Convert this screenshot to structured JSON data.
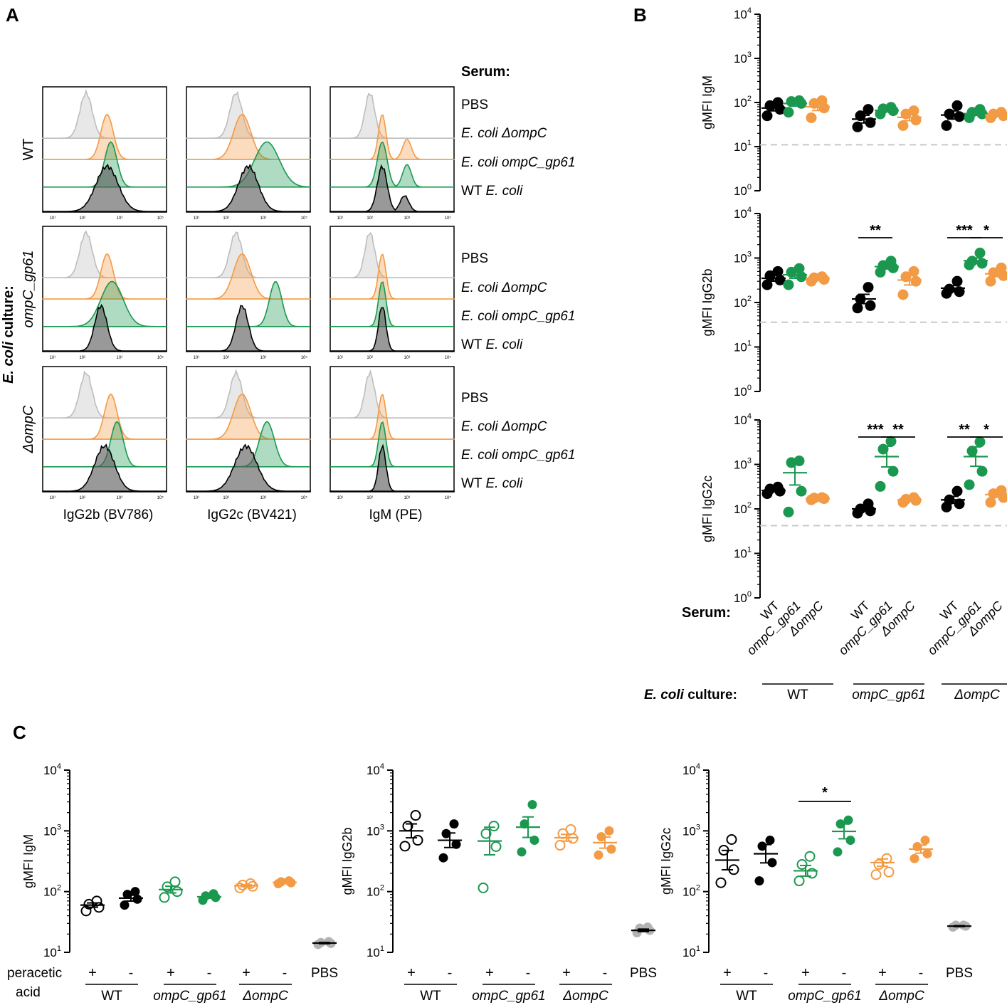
{
  "colors": {
    "wt": "#000000",
    "gp61": "#1a9850",
    "ompc": "#f39a44",
    "pbs": "#b3b3b3",
    "dash": "#c8c8c8"
  },
  "panels": {
    "A": "A",
    "B": "B",
    "C": "C"
  },
  "panel_a": {
    "serum_header": "Serum:",
    "culture_label_bold": "E. coli",
    "culture_label_rest": " culture:",
    "rows": [
      {
        "label": "WT",
        "italic": false
      },
      {
        "label": "ompC_gp61",
        "italic": true
      },
      {
        "label": "ΔompC",
        "italic": true
      }
    ],
    "legend": [
      {
        "text": "PBS",
        "italic": false
      },
      {
        "text": "E. coli ΔompC",
        "italic": true
      },
      {
        "text": "E. coli ompC_gp61",
        "italic": true
      },
      {
        "text": "WT ",
        "italic": false,
        "suffix": "E. coli"
      }
    ],
    "xlabels": [
      "IgG2b (BV786)",
      "IgG2c (BV421)",
      "IgM (PE)"
    ],
    "tick_labels": [
      "10¹",
      "10²",
      "10³",
      "10⁵"
    ]
  },
  "axis_ticks": [
    "10",
    "10",
    "10",
    "10",
    "10"
  ],
  "axis_exps": [
    "0",
    "1",
    "2",
    "3",
    "4"
  ],
  "chart_data": [
    {
      "id": "B-IgM",
      "type": "scatter",
      "scale": "log",
      "ylabel": "gMFI IgM",
      "ylim": [
        1,
        10000
      ],
      "detection_limit": 11,
      "groups": [
        {
          "culture": "WT",
          "serum": "WT",
          "color": "wt",
          "points": [
            50,
            70,
            85,
            100
          ],
          "mean": 75
        },
        {
          "culture": "WT",
          "serum": "ompC_gp61",
          "color": "gp61",
          "points": [
            60,
            95,
            105,
            110
          ],
          "mean": 95
        },
        {
          "culture": "WT",
          "serum": "ΔompC",
          "color": "ompc",
          "points": [
            45,
            75,
            95,
            110
          ],
          "mean": 80
        },
        {
          "culture": "ompC_gp61",
          "serum": "WT",
          "color": "wt",
          "points": [
            28,
            35,
            50,
            70
          ],
          "mean": 42
        },
        {
          "culture": "ompC_gp61",
          "serum": "ompC_gp61",
          "color": "gp61",
          "points": [
            55,
            65,
            72,
            78
          ],
          "mean": 66
        },
        {
          "culture": "ompC_gp61",
          "serum": "ΔompC",
          "color": "ompc",
          "points": [
            30,
            40,
            55,
            65
          ],
          "mean": 46
        },
        {
          "culture": "ΔompC",
          "serum": "WT",
          "color": "wt",
          "points": [
            30,
            48,
            55,
            85
          ],
          "mean": 52
        },
        {
          "culture": "ΔompC",
          "serum": "ompC_gp61",
          "color": "gp61",
          "points": [
            45,
            55,
            60,
            70
          ],
          "mean": 56
        },
        {
          "culture": "ΔompC",
          "serum": "ΔompC",
          "color": "ompc",
          "points": [
            45,
            50,
            55,
            60
          ],
          "mean": 52
        }
      ],
      "significance": []
    },
    {
      "id": "B-IgG2b",
      "type": "scatter",
      "scale": "log",
      "ylabel": "gMFI IgG2b",
      "ylim": [
        1,
        10000
      ],
      "detection_limit": 36,
      "groups": [
        {
          "culture": "WT",
          "serum": "WT",
          "color": "wt",
          "points": [
            250,
            320,
            400,
            500
          ],
          "mean": 350
        },
        {
          "culture": "WT",
          "serum": "ompC_gp61",
          "color": "gp61",
          "points": [
            250,
            380,
            480,
            580
          ],
          "mean": 420
        },
        {
          "culture": "WT",
          "serum": "ΔompC",
          "color": "ompc",
          "points": [
            300,
            330,
            360,
            380
          ],
          "mean": 345
        },
        {
          "culture": "ompC_gp61",
          "serum": "WT",
          "color": "wt",
          "points": [
            75,
            85,
            120,
            220
          ],
          "mean": 120
        },
        {
          "culture": "ompC_gp61",
          "serum": "ompC_gp61",
          "color": "gp61",
          "points": [
            480,
            600,
            680,
            850
          ],
          "mean": 640
        },
        {
          "culture": "ompC_gp61",
          "serum": "ΔompC",
          "color": "ompc",
          "points": [
            150,
            300,
            380,
            500
          ],
          "mean": 320
        },
        {
          "culture": "ΔompC",
          "serum": "WT",
          "color": "wt",
          "points": [
            160,
            175,
            200,
            300
          ],
          "mean": 210
        },
        {
          "culture": "ΔompC",
          "serum": "ompC_gp61",
          "color": "gp61",
          "points": [
            700,
            760,
            850,
            1300
          ],
          "mean": 870
        },
        {
          "culture": "ΔompC",
          "serum": "ΔompC",
          "color": "ompc",
          "points": [
            300,
            400,
            470,
            600
          ],
          "mean": 440
        }
      ],
      "significance": [
        {
          "from": "ompC_gp61:WT",
          "to": "ompC_gp61:ompC_gp61",
          "label": "**"
        },
        {
          "from": "ΔompC:WT",
          "to": "ΔompC:ompC_gp61",
          "label": "***"
        },
        {
          "from": "ΔompC:ompC_gp61",
          "to": "ΔompC:ΔompC",
          "label": "*"
        }
      ]
    },
    {
      "id": "B-IgG2c",
      "type": "scatter",
      "scale": "log",
      "ylabel": "gMFI IgG2c",
      "ylim": [
        1,
        10000
      ],
      "detection_limit": 42,
      "groups": [
        {
          "culture": "WT",
          "serum": "WT",
          "color": "wt",
          "points": [
            220,
            250,
            280,
            310
          ],
          "mean": 260
        },
        {
          "culture": "WT",
          "serum": "ompC_gp61",
          "color": "gp61",
          "points": [
            85,
            250,
            1100,
            1200
          ],
          "mean": 650
        },
        {
          "culture": "WT",
          "serum": "ΔompC",
          "color": "ompc",
          "points": [
            160,
            170,
            175,
            180
          ],
          "mean": 170
        },
        {
          "culture": "ompC_gp61",
          "serum": "WT",
          "color": "wt",
          "points": [
            80,
            90,
            100,
            130
          ],
          "mean": 100
        },
        {
          "culture": "ompC_gp61",
          "serum": "ompC_gp61",
          "color": "gp61",
          "points": [
            320,
            700,
            2200,
            3300
          ],
          "mean": 1500
        },
        {
          "culture": "ompC_gp61",
          "serum": "ΔompC",
          "color": "ompc",
          "points": [
            140,
            155,
            165,
            180
          ],
          "mean": 160
        },
        {
          "culture": "ΔompC",
          "serum": "WT",
          "color": "wt",
          "points": [
            110,
            130,
            160,
            250
          ],
          "mean": 160
        },
        {
          "culture": "ΔompC",
          "serum": "ompC_gp61",
          "color": "gp61",
          "points": [
            350,
            700,
            2000,
            3200
          ],
          "mean": 1500
        },
        {
          "culture": "ΔompC",
          "serum": "ΔompC",
          "color": "ompc",
          "points": [
            140,
            180,
            220,
            260
          ],
          "mean": 210
        }
      ],
      "significance": [
        {
          "from": "ompC_gp61:WT",
          "to": "ompC_gp61:ompC_gp61",
          "label": "***"
        },
        {
          "from": "ompC_gp61:ompC_gp61",
          "to": "ompC_gp61:ΔompC",
          "label": "**"
        },
        {
          "from": "ΔompC:WT",
          "to": "ΔompC:ompC_gp61",
          "label": "**"
        },
        {
          "from": "ΔompC:ompC_gp61",
          "to": "ΔompC:ΔompC",
          "label": "*"
        }
      ]
    },
    {
      "id": "C-IgM",
      "type": "scatter",
      "scale": "log",
      "ylabel": "gMFI IgM",
      "ylim": [
        10,
        10000
      ],
      "groups": [
        {
          "culture": "WT",
          "treat": "+",
          "color": "wt",
          "hollow": true,
          "points": [
            48,
            55,
            62,
            70
          ],
          "mean": 60
        },
        {
          "culture": "WT",
          "treat": "-",
          "color": "wt",
          "hollow": false,
          "points": [
            60,
            75,
            90,
            100
          ],
          "mean": 78
        },
        {
          "culture": "ompC_gp61",
          "treat": "+",
          "color": "gp61",
          "hollow": true,
          "points": [
            80,
            100,
            120,
            145
          ],
          "mean": 108
        },
        {
          "culture": "ompC_gp61",
          "treat": "-",
          "color": "gp61",
          "hollow": false,
          "points": [
            72,
            80,
            85,
            92
          ],
          "mean": 82
        },
        {
          "culture": "ΔompC",
          "treat": "+",
          "color": "ompc",
          "hollow": true,
          "points": [
            115,
            122,
            128,
            135
          ],
          "mean": 125
        },
        {
          "culture": "ΔompC",
          "treat": "-",
          "color": "ompc",
          "hollow": false,
          "points": [
            135,
            140,
            145,
            150
          ],
          "mean": 142
        },
        {
          "culture": "PBS",
          "treat": "",
          "color": "pbs",
          "hollow": false,
          "points": [
            13.5,
            14,
            14.5,
            15
          ],
          "mean": 14.2
        }
      ],
      "significance": []
    },
    {
      "id": "C-IgG2b",
      "type": "scatter",
      "scale": "log",
      "ylabel": "gMFI IgG2b",
      "ylim": [
        10,
        10000
      ],
      "groups": [
        {
          "culture": "WT",
          "treat": "+",
          "color": "wt",
          "hollow": true,
          "points": [
            560,
            700,
            1200,
            1800
          ],
          "mean": 1000
        },
        {
          "culture": "WT",
          "treat": "-",
          "color": "wt",
          "hollow": false,
          "points": [
            360,
            600,
            900,
            1300
          ],
          "mean": 700
        },
        {
          "culture": "ompC_gp61",
          "treat": "+",
          "color": "gp61",
          "hollow": true,
          "points": [
            115,
            550,
            900,
            1200
          ],
          "mean": 680
        },
        {
          "culture": "ompC_gp61",
          "treat": "-",
          "color": "gp61",
          "hollow": false,
          "points": [
            450,
            700,
            1300,
            2700
          ],
          "mean": 1150
        },
        {
          "culture": "ΔompC",
          "treat": "+",
          "color": "ompc",
          "hollow": true,
          "points": [
            580,
            750,
            900,
            1050
          ],
          "mean": 770
        },
        {
          "culture": "ΔompC",
          "treat": "-",
          "color": "ompc",
          "hollow": false,
          "points": [
            400,
            500,
            800,
            1000
          ],
          "mean": 640
        },
        {
          "culture": "PBS",
          "treat": "",
          "color": "pbs",
          "hollow": false,
          "points": [
            21,
            23,
            25,
            26
          ],
          "mean": 23
        }
      ],
      "significance": []
    },
    {
      "id": "C-IgG2c",
      "type": "scatter",
      "scale": "log",
      "ylabel": "gMFI IgG2c",
      "ylim": [
        10,
        10000
      ],
      "groups": [
        {
          "culture": "WT",
          "treat": "+",
          "color": "wt",
          "hollow": true,
          "points": [
            140,
            230,
            480,
            720
          ],
          "mean": 330
        },
        {
          "culture": "WT",
          "treat": "-",
          "color": "wt",
          "hollow": false,
          "points": [
            150,
            300,
            560,
            700
          ],
          "mean": 420
        },
        {
          "culture": "ompC_gp61",
          "treat": "+",
          "color": "gp61",
          "hollow": true,
          "points": [
            150,
            200,
            280,
            380
          ],
          "mean": 220
        },
        {
          "culture": "ompC_gp61",
          "treat": "-",
          "color": "gp61",
          "hollow": false,
          "points": [
            450,
            700,
            1300,
            1500
          ],
          "mean": 980
        },
        {
          "culture": "ΔompC",
          "treat": "+",
          "color": "ompc",
          "hollow": true,
          "points": [
            190,
            210,
            280,
            350
          ],
          "mean": 300
        },
        {
          "culture": "ΔompC",
          "treat": "-",
          "color": "ompc",
          "hollow": false,
          "points": [
            350,
            420,
            550,
            700
          ],
          "mean": 500
        },
        {
          "culture": "PBS",
          "treat": "",
          "color": "pbs",
          "hollow": false,
          "points": [
            26,
            27,
            28,
            28
          ],
          "mean": 27
        }
      ],
      "significance": [
        {
          "from": "ompC_gp61:+",
          "to": "ompC_gp61:-",
          "label": "*"
        }
      ]
    }
  ],
  "panel_b_axis": {
    "serum_label": "Serum:",
    "serum_names": [
      "WT",
      "ompC_gp61",
      "ΔompC"
    ],
    "culture_label_bold": "E. coli",
    "culture_label_rest": " culture:",
    "culture_names": [
      "WT",
      "ompC_gp61",
      "ΔompC"
    ]
  },
  "panel_c_axis": {
    "treat_label_1": "peracetic",
    "treat_label_2": "acid",
    "culture_names": [
      "WT",
      "ompC_gp61",
      "ΔompC"
    ],
    "pbs": "PBS",
    "plus": "+",
    "minus": "-"
  }
}
